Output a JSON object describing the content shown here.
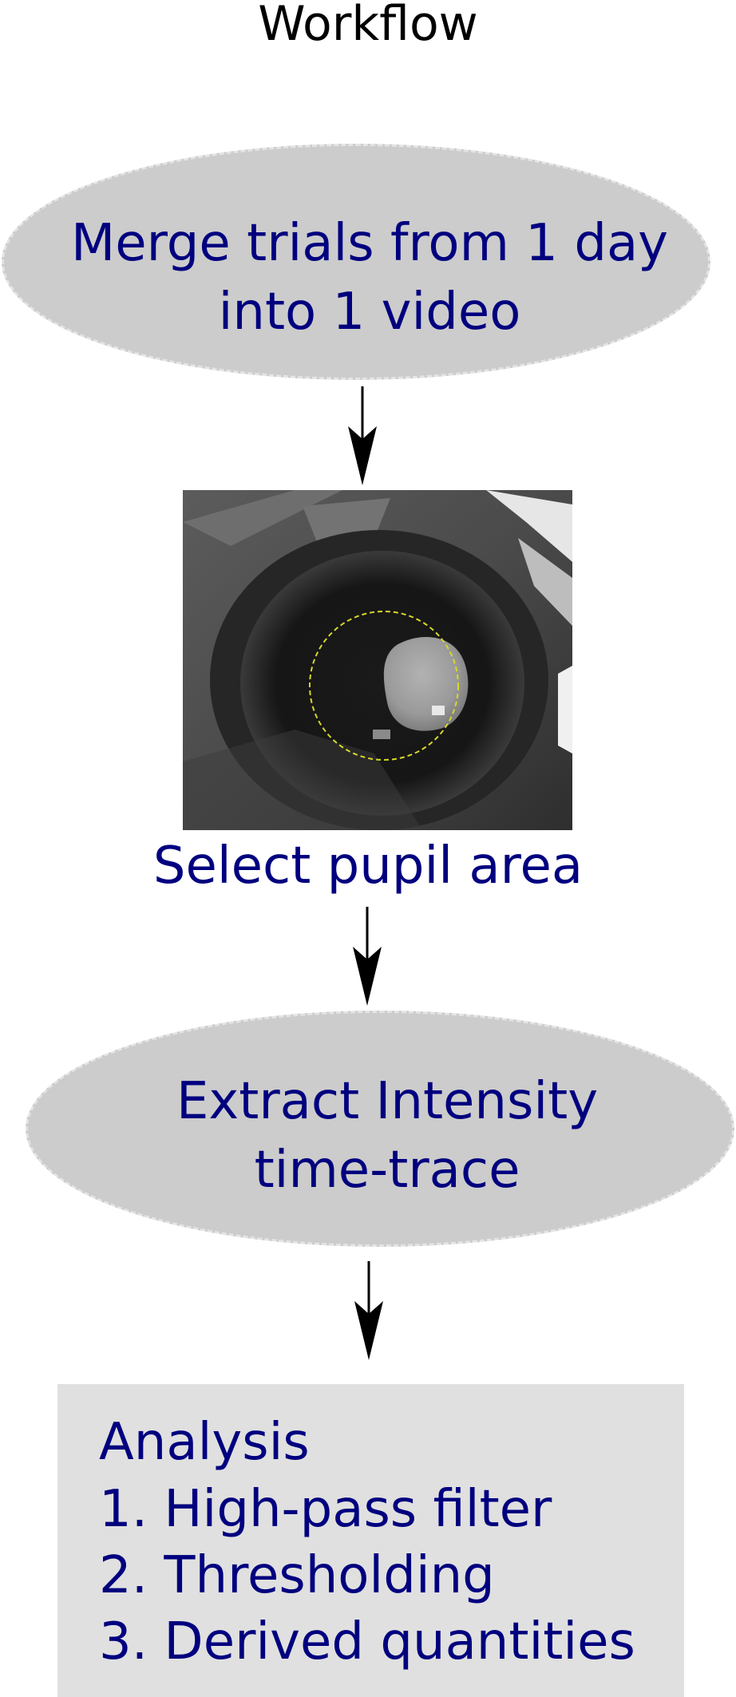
{
  "title": "Workflow",
  "steps": {
    "merge": {
      "line1": "Merge trials from 1 day",
      "line2": "into 1 video"
    },
    "select": {
      "caption": "Select pupil area"
    },
    "extract": {
      "line1": "Extract Intensity",
      "line2": "time-trace"
    }
  },
  "analysis": {
    "heading": "Analysis",
    "items": [
      "1. High-pass filter",
      "2. Thresholding",
      "3. Derived quantities"
    ]
  },
  "colors": {
    "text": "#00007f",
    "ellipse_fill": "#cccccc",
    "box_fill": "#e0e0e0",
    "roi_circle": "#d7d72a",
    "arrow": "#000000"
  }
}
